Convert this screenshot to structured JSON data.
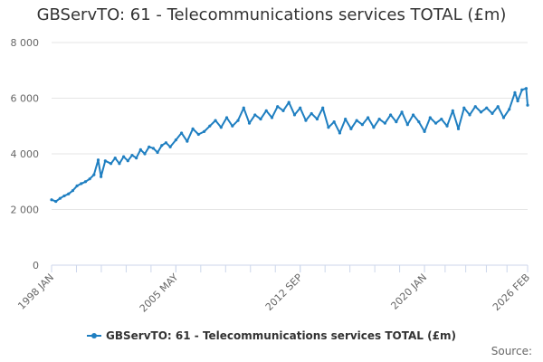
{
  "chart_data": {
    "type": "line",
    "title": "GBServTO: 61 - Telecommunications services TOTAL (£m)",
    "xlabel": "",
    "ylabel": "",
    "x_start": "1998 JAN",
    "x_end": "2026 FEB",
    "x_tick_labels": [
      "1998 JAN",
      "2005 MAY",
      "2012 SEP",
      "2020 JAN",
      "2026 FEB"
    ],
    "y_tick_labels": [
      "0",
      "2 000",
      "4 000",
      "6 000",
      "8 000"
    ],
    "ylim": [
      0,
      8000
    ],
    "grid": true,
    "legend_position": "bottom",
    "series": [
      {
        "name": "GBServTO: 61 - Telecommunications services TOTAL (£m)",
        "color": "#1f7fc1",
        "points": [
          [
            "1998 JAN",
            2350
          ],
          [
            "1998 APR",
            2290
          ],
          [
            "1998 JUL",
            2400
          ],
          [
            "1998 OCT",
            2490
          ],
          [
            "1999 JAN",
            2560
          ],
          [
            "1999 APR",
            2680
          ],
          [
            "1999 JUL",
            2850
          ],
          [
            "1999 OCT",
            2930
          ],
          [
            "2000 JAN",
            3000
          ],
          [
            "2000 APR",
            3100
          ],
          [
            "2000 JUL",
            3250
          ],
          [
            "2000 OCT",
            3780
          ],
          [
            "2000 DEC",
            3180
          ],
          [
            "2001 MAR",
            3750
          ],
          [
            "2001 JUL",
            3650
          ],
          [
            "2001 OCT",
            3850
          ],
          [
            "2002 JAN",
            3650
          ],
          [
            "2002 APR",
            3900
          ],
          [
            "2002 JUL",
            3750
          ],
          [
            "2002 OCT",
            3950
          ],
          [
            "2003 JAN",
            3850
          ],
          [
            "2003 APR",
            4150
          ],
          [
            "2003 JUL",
            4000
          ],
          [
            "2003 OCT",
            4250
          ],
          [
            "2004 JAN",
            4200
          ],
          [
            "2004 APR",
            4050
          ],
          [
            "2004 JUL",
            4300
          ],
          [
            "2004 OCT",
            4400
          ],
          [
            "2005 JAN",
            4250
          ],
          [
            "2005 MAY",
            4500
          ],
          [
            "2005 SEP",
            4750
          ],
          [
            "2006 JAN",
            4450
          ],
          [
            "2006 MAY",
            4900
          ],
          [
            "2006 SEP",
            4700
          ],
          [
            "2007 JAN",
            4800
          ],
          [
            "2007 MAY",
            5000
          ],
          [
            "2007 SEP",
            5200
          ],
          [
            "2008 JAN",
            4950
          ],
          [
            "2008 MAY",
            5300
          ],
          [
            "2008 SEP",
            5000
          ],
          [
            "2009 JAN",
            5200
          ],
          [
            "2009 MAY",
            5650
          ],
          [
            "2009 SEP",
            5100
          ],
          [
            "2010 JAN",
            5400
          ],
          [
            "2010 MAY",
            5250
          ],
          [
            "2010 SEP",
            5550
          ],
          [
            "2011 JAN",
            5300
          ],
          [
            "2011 MAY",
            5700
          ],
          [
            "2011 SEP",
            5550
          ],
          [
            "2012 JAN",
            5850
          ],
          [
            "2012 MAY",
            5400
          ],
          [
            "2012 SEP",
            5650
          ],
          [
            "2013 JAN",
            5200
          ],
          [
            "2013 MAY",
            5450
          ],
          [
            "2013 SEP",
            5250
          ],
          [
            "2014 JAN",
            5650
          ],
          [
            "2014 MAY",
            4950
          ],
          [
            "2014 SEP",
            5150
          ],
          [
            "2015 JAN",
            4750
          ],
          [
            "2015 MAY",
            5250
          ],
          [
            "2015 SEP",
            4900
          ],
          [
            "2016 JAN",
            5200
          ],
          [
            "2016 MAY",
            5050
          ],
          [
            "2016 SEP",
            5300
          ],
          [
            "2017 JAN",
            4950
          ],
          [
            "2017 MAY",
            5250
          ],
          [
            "2017 SEP",
            5100
          ],
          [
            "2018 JAN",
            5400
          ],
          [
            "2018 MAY",
            5150
          ],
          [
            "2018 SEP",
            5500
          ],
          [
            "2019 JAN",
            5050
          ],
          [
            "2019 MAY",
            5400
          ],
          [
            "2019 SEP",
            5150
          ],
          [
            "2020 JAN",
            4800
          ],
          [
            "2020 MAY",
            5300
          ],
          [
            "2020 SEP",
            5100
          ],
          [
            "2021 JAN",
            5250
          ],
          [
            "2021 MAY",
            5000
          ],
          [
            "2021 SEP",
            5550
          ],
          [
            "2022 JAN",
            4900
          ],
          [
            "2022 MAY",
            5650
          ],
          [
            "2022 SEP",
            5400
          ],
          [
            "2023 JAN",
            5700
          ],
          [
            "2023 MAY",
            5500
          ],
          [
            "2023 SEP",
            5650
          ],
          [
            "2024 JAN",
            5450
          ],
          [
            "2024 MAY",
            5700
          ],
          [
            "2024 SEP",
            5300
          ],
          [
            "2025 JAN",
            5600
          ],
          [
            "2025 MAY",
            6200
          ],
          [
            "2025 JUL",
            5900
          ],
          [
            "2025 OCT",
            6300
          ],
          [
            "2026 JAN",
            6350
          ],
          [
            "2026 FEB",
            5750
          ]
        ]
      }
    ]
  },
  "footer": {
    "source_label": "Source:"
  }
}
